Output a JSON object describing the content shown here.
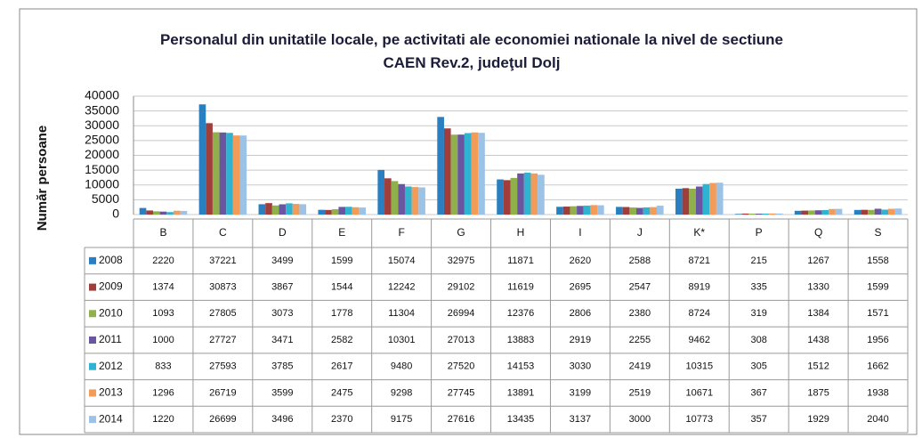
{
  "chart_data": {
    "type": "bar",
    "title": "Personalul din unitatile locale, pe activitati ale economiei nationale la nivel de sectiune CAEN Rev.2, judeţul  Dolj",
    "y_label": "Număr persoane",
    "categories": [
      "B",
      "C",
      "D",
      "E",
      "F",
      "G",
      "H",
      "I",
      "J",
      "K*",
      "P",
      "Q",
      "S"
    ],
    "series": [
      {
        "name": "2008",
        "color": "#2a7fc0",
        "values": [
          2220,
          37221,
          3499,
          1599,
          15074,
          32975,
          11871,
          2620,
          2588,
          8721,
          215,
          1267,
          1558
        ]
      },
      {
        "name": "2009",
        "color": "#a03e3c",
        "values": [
          1374,
          30873,
          3867,
          1544,
          12242,
          29102,
          11619,
          2695,
          2547,
          8919,
          335,
          1330,
          1599
        ]
      },
      {
        "name": "2010",
        "color": "#8fb04a",
        "values": [
          1093,
          27805,
          3073,
          1778,
          11304,
          26994,
          12376,
          2806,
          2380,
          8724,
          319,
          1384,
          1571
        ]
      },
      {
        "name": "2011",
        "color": "#6a55a0",
        "values": [
          1000,
          27727,
          3471,
          2582,
          10301,
          27013,
          13883,
          2919,
          2255,
          9462,
          308,
          1438,
          1956
        ]
      },
      {
        "name": "2012",
        "color": "#2fb3d0",
        "values": [
          833,
          27593,
          3785,
          2617,
          9480,
          27520,
          14153,
          3030,
          2419,
          10315,
          305,
          1512,
          1662
        ]
      },
      {
        "name": "2013",
        "color": "#f39c5a",
        "values": [
          1296,
          26719,
          3599,
          2475,
          9298,
          27745,
          13891,
          3199,
          2519,
          10671,
          367,
          1875,
          1938
        ]
      },
      {
        "name": "2014",
        "color": "#9cc3e6",
        "values": [
          1220,
          26699,
          3496,
          2370,
          9175,
          27616,
          13435,
          3137,
          3000,
          10773,
          357,
          1929,
          2040
        ]
      }
    ],
    "ylim": [
      0,
      40000
    ],
    "yticks": [
      0,
      5000,
      10000,
      15000,
      20000,
      25000,
      30000,
      35000,
      40000
    ],
    "grid": true
  }
}
